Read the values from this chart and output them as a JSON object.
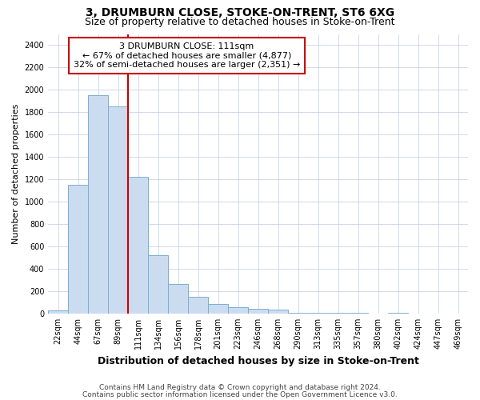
{
  "title": "3, DRUMBURN CLOSE, STOKE-ON-TRENT, ST6 6XG",
  "subtitle": "Size of property relative to detached houses in Stoke-on-Trent",
  "xlabel": "Distribution of detached houses by size in Stoke-on-Trent",
  "ylabel": "Number of detached properties",
  "categories": [
    "22sqm",
    "44sqm",
    "67sqm",
    "89sqm",
    "111sqm",
    "134sqm",
    "156sqm",
    "178sqm",
    "201sqm",
    "223sqm",
    "246sqm",
    "268sqm",
    "290sqm",
    "313sqm",
    "335sqm",
    "357sqm",
    "380sqm",
    "402sqm",
    "424sqm",
    "447sqm",
    "469sqm"
  ],
  "values": [
    30,
    1150,
    1950,
    1850,
    1220,
    520,
    265,
    150,
    85,
    55,
    45,
    35,
    10,
    10,
    5,
    5,
    3,
    5,
    3,
    2,
    1
  ],
  "bar_color": "#ccdcf0",
  "bar_edge_color": "#7aafd4",
  "highlight_index": 4,
  "highlight_line_color": "#cc0000",
  "annotation_line1": "3 DRUMBURN CLOSE: 111sqm",
  "annotation_line2": "← 67% of detached houses are smaller (4,877)",
  "annotation_line3": "32% of semi-detached houses are larger (2,351) →",
  "annotation_box_color": "white",
  "annotation_box_edge": "#cc0000",
  "ylim": [
    0,
    2500
  ],
  "yticks": [
    0,
    200,
    400,
    600,
    800,
    1000,
    1200,
    1400,
    1600,
    1800,
    2000,
    2200,
    2400
  ],
  "footer1": "Contains HM Land Registry data © Crown copyright and database right 2024.",
  "footer2": "Contains public sector information licensed under the Open Government Licence v3.0.",
  "bg_color": "#ffffff",
  "plot_bg_color": "#ffffff",
  "grid_color": "#c8d4e8",
  "title_fontsize": 10,
  "subtitle_fontsize": 9,
  "xlabel_fontsize": 9,
  "ylabel_fontsize": 8,
  "tick_fontsize": 7,
  "annotation_fontsize": 8,
  "footer_fontsize": 6.5
}
